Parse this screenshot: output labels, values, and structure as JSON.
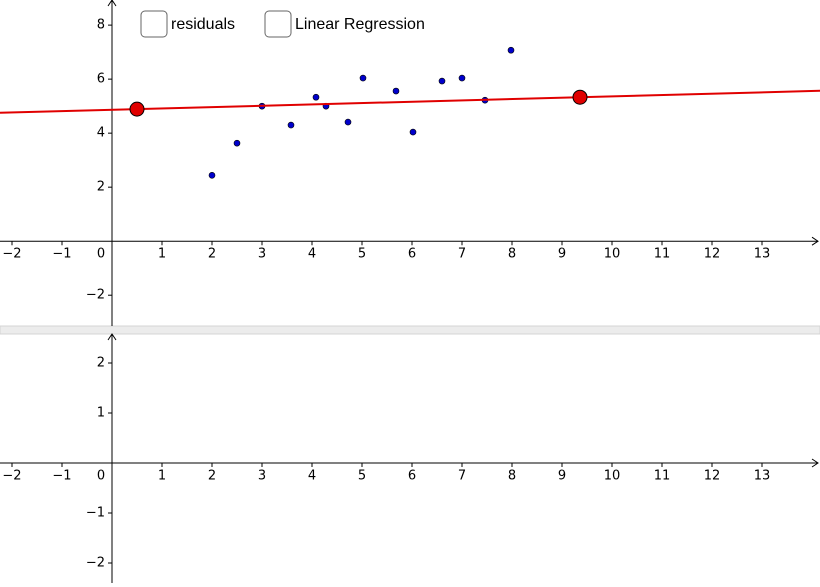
{
  "chart_data": [
    {
      "type": "scatter",
      "checkboxes": [
        {
          "label": "residuals",
          "color": "#000000"
        },
        {
          "label": "Linear Regression",
          "color": "#22b022"
        }
      ],
      "xlim": [
        -2.24,
        14.12
      ],
      "ylim": [
        -3.14,
        8.93
      ],
      "xticks": [
        {
          "value": -2,
          "label": "−2"
        },
        {
          "value": -1,
          "label": "−1"
        },
        0,
        1,
        2,
        3,
        4,
        5,
        6,
        7,
        8,
        9,
        10,
        11,
        12,
        13
      ],
      "yticks": [
        {
          "value": -2,
          "label": "−2"
        },
        2,
        4,
        6,
        8
      ],
      "grid": false,
      "series": [
        {
          "color": "#0000cc",
          "radius": 3,
          "x": [
            2,
            2.5,
            3,
            3.58,
            4.08,
            4.28,
            4.72,
            5.02,
            5.68,
            6.02,
            6.6,
            7,
            7.46,
            7.98
          ],
          "values": [
            2.44,
            3.63,
            5.0,
            4.3,
            5.33,
            5.0,
            4.41,
            6.04,
            5.56,
            4.04,
            5.93,
            6.04,
            5.22,
            7.07
          ]
        },
        {
          "color": "#e00000",
          "radius": 7,
          "line": true,
          "x": [
            0.5,
            9.36
          ],
          "values": [
            4.89,
            5.33
          ]
        }
      ]
    },
    {
      "type": "scatter",
      "xlim": [
        -2.24,
        14.12
      ],
      "ylim": [
        -2.4,
        2.58
      ],
      "xticks": [
        {
          "value": -2,
          "label": "−2"
        },
        {
          "value": -1,
          "label": "−1"
        },
        0,
        1,
        2,
        3,
        4,
        5,
        6,
        7,
        8,
        9,
        10,
        11,
        12,
        13
      ],
      "yticks": [
        {
          "value": -2,
          "label": "−2"
        },
        {
          "value": -1,
          "label": "−1"
        },
        1,
        2
      ],
      "grid": false,
      "series": []
    }
  ]
}
